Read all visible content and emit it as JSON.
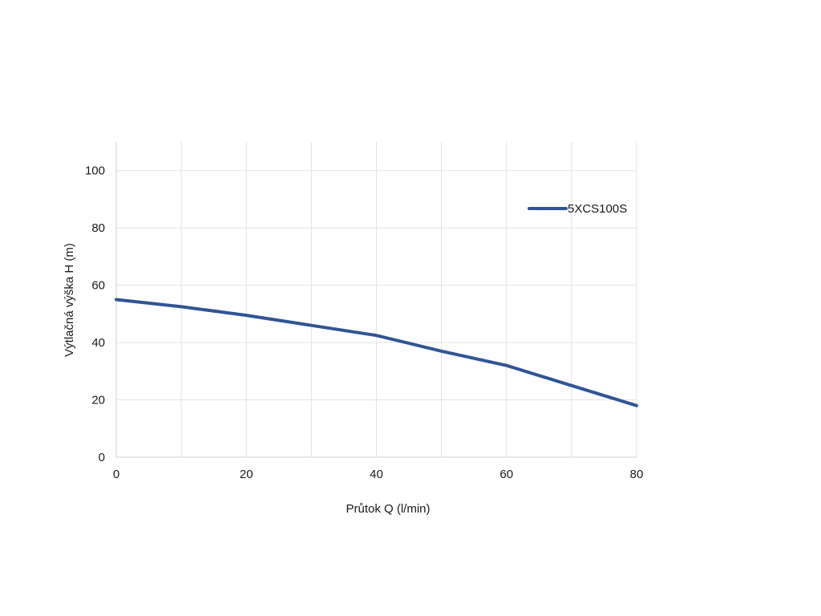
{
  "chart_data": {
    "type": "line",
    "title": "",
    "xlabel": "Průtok Q (l/min)",
    "ylabel": "Výtlačná výška H (m)",
    "xlim": [
      0,
      80
    ],
    "ylim": [
      0,
      110
    ],
    "xticks": [
      0,
      20,
      40,
      60,
      80
    ],
    "yticks": [
      0,
      20,
      40,
      60,
      80,
      100
    ],
    "x_minor_grid": [
      10,
      30,
      50,
      70
    ],
    "grid": true,
    "legend_position": "top-right",
    "series": [
      {
        "name": "5XCS100S",
        "color": "#2f5597",
        "x": [
          0,
          10,
          20,
          30,
          40,
          50,
          60,
          70,
          80
        ],
        "y": [
          55,
          52.5,
          49.5,
          46,
          42.5,
          37,
          32,
          25,
          18
        ]
      }
    ]
  }
}
